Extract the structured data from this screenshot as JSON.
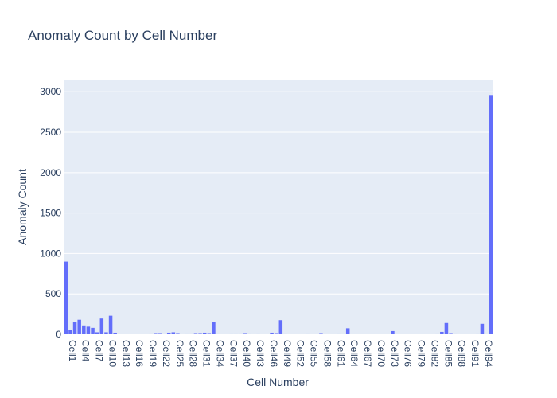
{
  "colors": {
    "plot_bg": "#e5ecf6",
    "grid": "#ffffff",
    "bar": "#636efa",
    "text": "#2a3f5f"
  },
  "chart_data": {
    "type": "bar",
    "title": "Anomaly Count by Cell Number",
    "xlabel": "Cell Number",
    "ylabel": "Anomaly Count",
    "ylim": [
      0,
      3150
    ],
    "yticks": [
      0,
      500,
      1000,
      1500,
      2000,
      2500,
      3000
    ],
    "grid": true,
    "legend": "none",
    "categories": [
      "Cell1",
      "Cell2",
      "Cell3",
      "Cell4",
      "Cell5",
      "Cell6",
      "Cell7",
      "Cell8",
      "Cell9",
      "Cell10",
      "Cell11",
      "Cell12",
      "Cell13",
      "Cell14",
      "Cell15",
      "Cell16",
      "Cell17",
      "Cell18",
      "Cell19",
      "Cell20",
      "Cell21",
      "Cell22",
      "Cell23",
      "Cell24",
      "Cell25",
      "Cell26",
      "Cell27",
      "Cell28",
      "Cell29",
      "Cell30",
      "Cell31",
      "Cell32",
      "Cell33",
      "Cell34",
      "Cell35",
      "Cell36",
      "Cell37",
      "Cell38",
      "Cell39",
      "Cell40",
      "Cell41",
      "Cell42",
      "Cell43",
      "Cell44",
      "Cell45",
      "Cell46",
      "Cell47",
      "Cell48",
      "Cell49",
      "Cell50",
      "Cell51",
      "Cell52",
      "Cell53",
      "Cell54",
      "Cell55",
      "Cell56",
      "Cell57",
      "Cell58",
      "Cell59",
      "Cell60",
      "Cell61",
      "Cell62",
      "Cell63",
      "Cell64",
      "Cell65",
      "Cell66",
      "Cell67",
      "Cell68",
      "Cell69",
      "Cell70",
      "Cell71",
      "Cell72",
      "Cell73",
      "Cell74",
      "Cell75",
      "Cell76",
      "Cell77",
      "Cell78",
      "Cell79",
      "Cell80",
      "Cell81",
      "Cell82",
      "Cell83",
      "Cell84",
      "Cell85",
      "Cell86",
      "Cell87",
      "Cell88",
      "Cell89",
      "Cell90",
      "Cell91",
      "Cell92",
      "Cell93",
      "Cell94",
      "Cell95",
      "Cell96"
    ],
    "tick_labels_shown": [
      "Cell1",
      "Cell4",
      "Cell7",
      "Cell10",
      "Cell13",
      "Cell16",
      "Cell19",
      "Cell22",
      "Cell25",
      "Cell28",
      "Cell31",
      "Cell34",
      "Cell37",
      "Cell40",
      "Cell43",
      "Cell46",
      "Cell49",
      "Cell52",
      "Cell55",
      "Cell58",
      "Cell61",
      "Cell64",
      "Cell67",
      "Cell70",
      "Cell73",
      "Cell76",
      "Cell79",
      "Cell82",
      "Cell85",
      "Cell88",
      "Cell91",
      "Cell94"
    ],
    "values": [
      900,
      50,
      150,
      180,
      110,
      95,
      80,
      25,
      195,
      25,
      230,
      20,
      5,
      5,
      5,
      5,
      5,
      5,
      5,
      10,
      15,
      15,
      5,
      20,
      25,
      15,
      5,
      10,
      10,
      15,
      15,
      20,
      15,
      150,
      10,
      5,
      5,
      10,
      10,
      10,
      15,
      10,
      5,
      10,
      5,
      5,
      20,
      15,
      175,
      10,
      5,
      5,
      5,
      5,
      10,
      5,
      5,
      15,
      5,
      5,
      5,
      10,
      5,
      75,
      5,
      5,
      5,
      5,
      5,
      5,
      5,
      5,
      5,
      40,
      5,
      5,
      5,
      5,
      5,
      5,
      5,
      5,
      5,
      10,
      30,
      140,
      15,
      10,
      5,
      5,
      5,
      5,
      10,
      130,
      5,
      2960
    ]
  }
}
